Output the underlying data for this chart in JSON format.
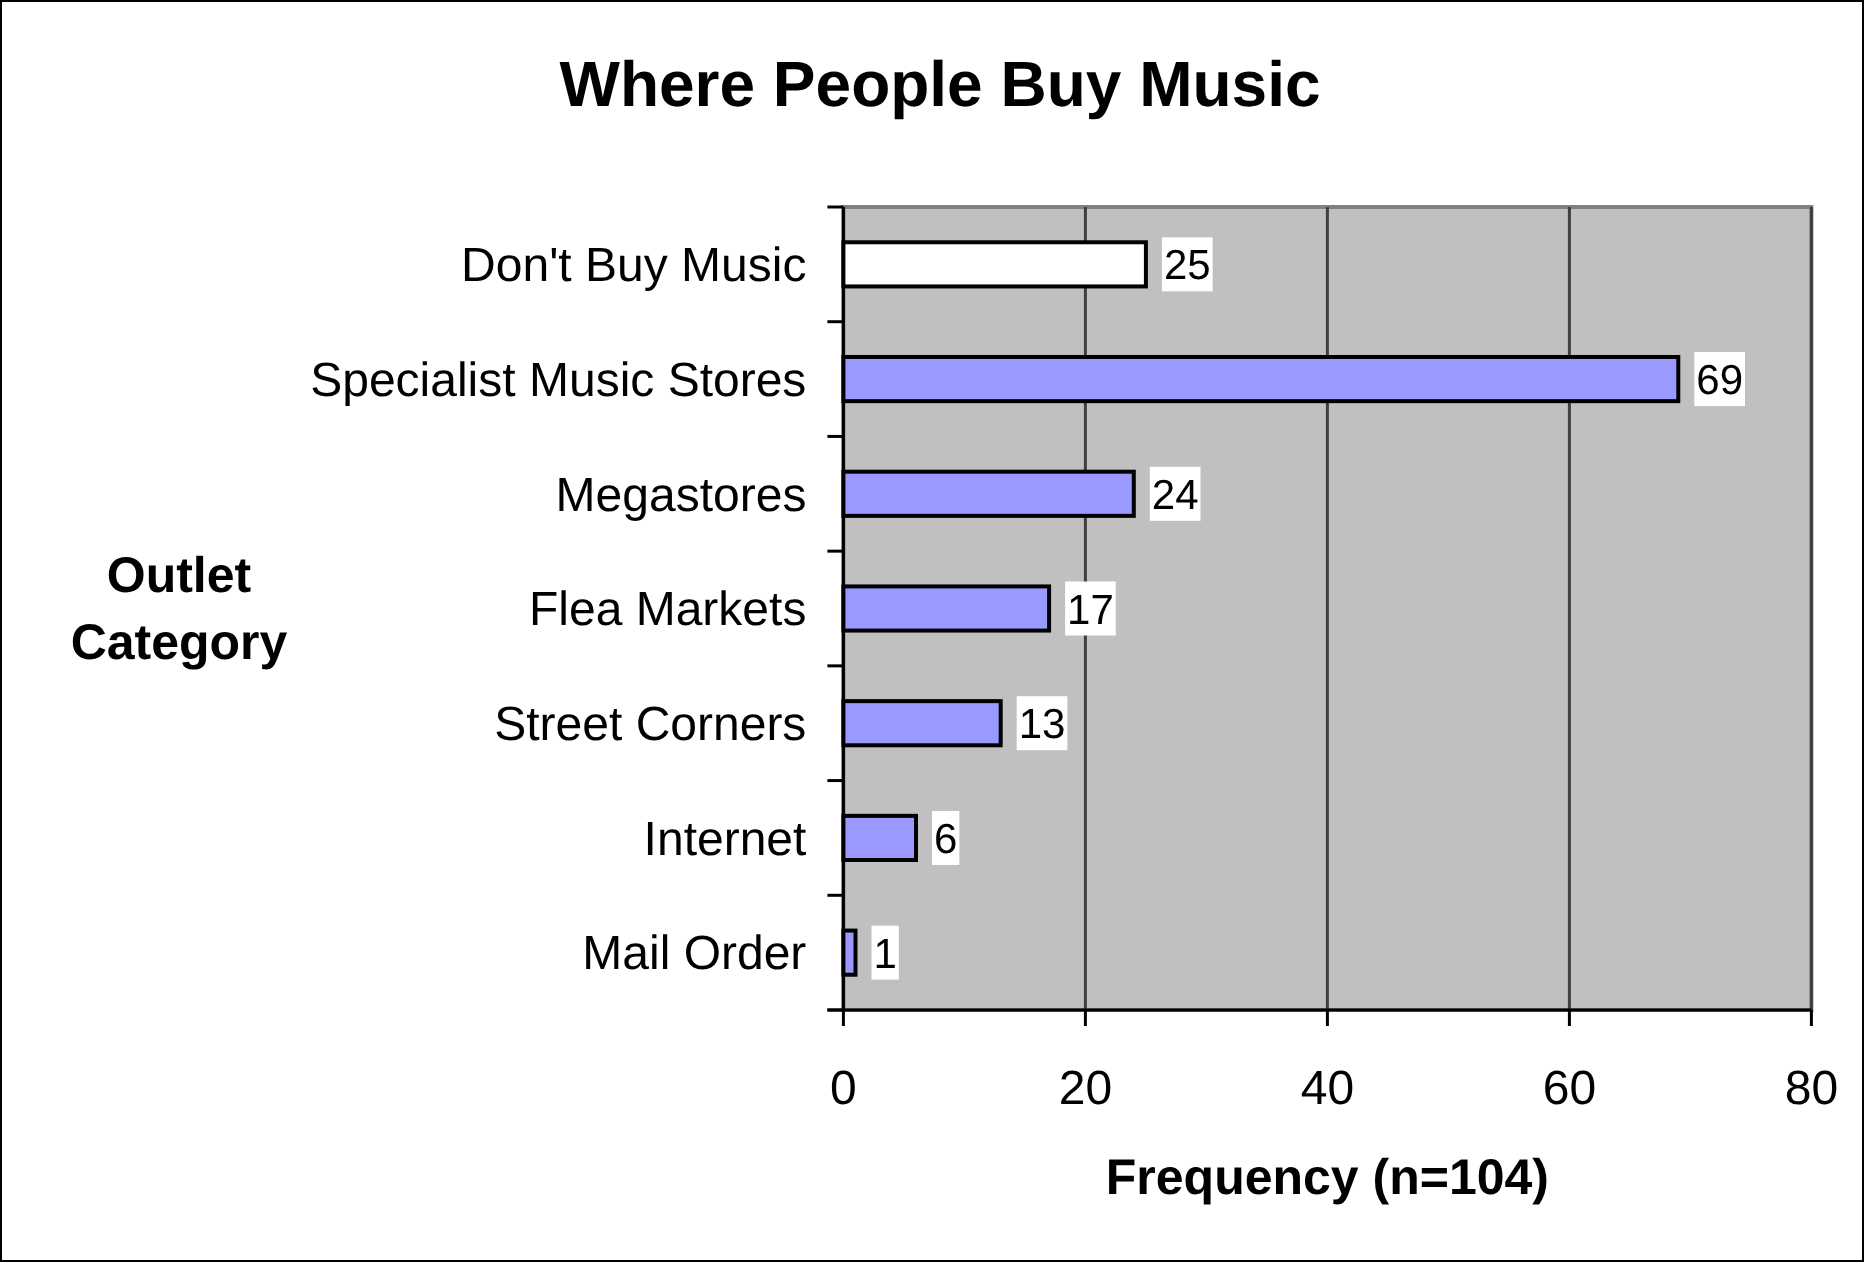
{
  "chart_data": {
    "type": "bar",
    "orientation": "horizontal",
    "title": "Where People Buy Music",
    "xlabel": "Frequency (n=104)",
    "ylabel": "Outlet Category",
    "categories": [
      "Don't Buy Music",
      "Specialist Music Stores",
      "Megastores",
      "Flea Markets",
      "Street Corners",
      "Internet",
      "Mail Order"
    ],
    "values": [
      25,
      69,
      24,
      17,
      13,
      6,
      1
    ],
    "colors": [
      "#ffffff",
      "#9999ff",
      "#9999ff",
      "#9999ff",
      "#9999ff",
      "#9999ff",
      "#9999ff"
    ],
    "xlim": [
      0,
      80
    ],
    "xticks": [
      0,
      20,
      40,
      60,
      80
    ],
    "grid": "x",
    "data_labels": true
  }
}
